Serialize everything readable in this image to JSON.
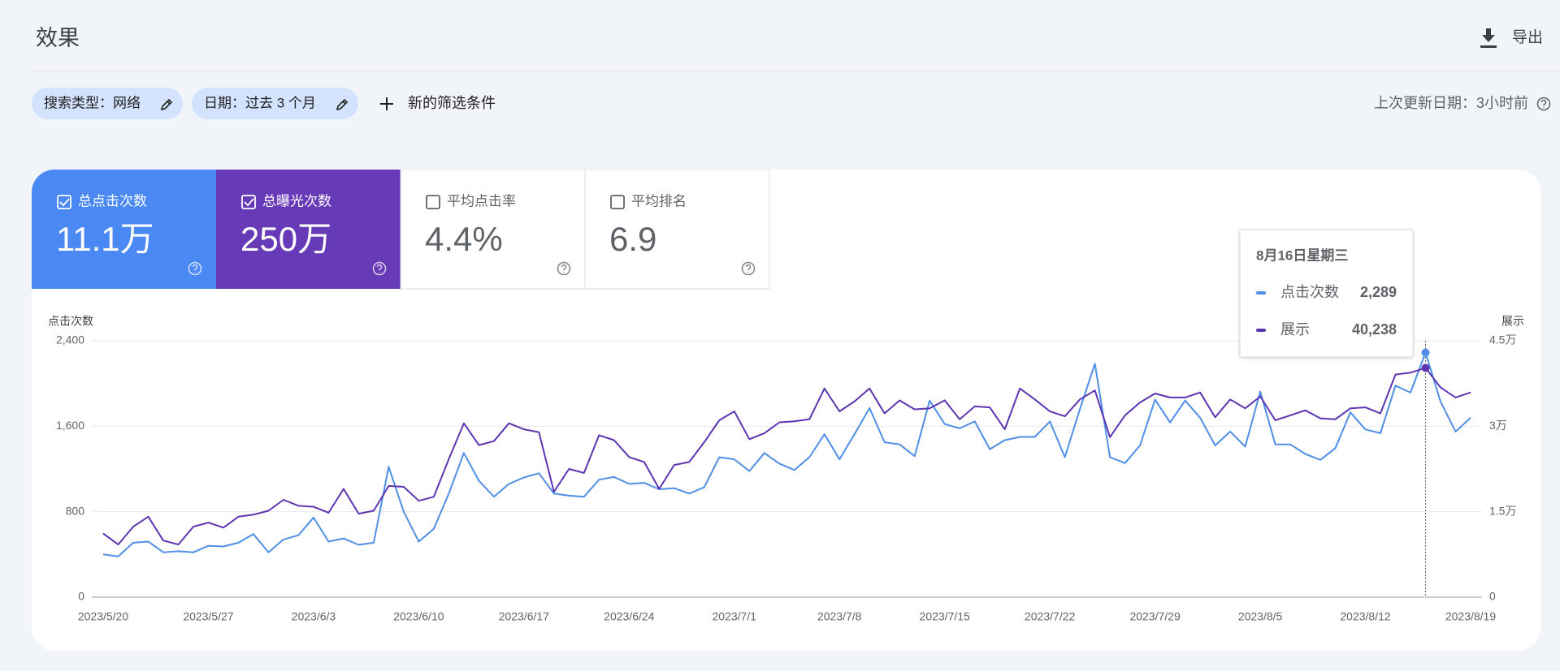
{
  "header": {
    "title": "效果",
    "export": "导出"
  },
  "filters": {
    "items": [
      "搜索类型：网络",
      "日期：过去 3 个月"
    ],
    "add": "新的筛选条件",
    "last_updated": "上次更新日期：3小时前"
  },
  "metrics": [
    {
      "label": "总点击次数",
      "value": "11.1万",
      "checked": true,
      "color": "#4a89f3"
    },
    {
      "label": "总曝光次数",
      "value": "250万",
      "checked": true,
      "color": "#673ab7"
    },
    {
      "label": "平均点击率",
      "value": "4.4%",
      "checked": false
    },
    {
      "label": "平均排名",
      "value": "6.9",
      "checked": false
    }
  ],
  "chart_data": {
    "type": "line",
    "y_label": "点击次数",
    "y2_label": "展示",
    "categories": [
      "2023/5/20",
      null,
      null,
      null,
      null,
      null,
      null,
      "2023/5/27",
      null,
      null,
      null,
      null,
      null,
      null,
      "2023/6/3",
      null,
      null,
      null,
      null,
      null,
      null,
      "2023/6/10",
      null,
      null,
      null,
      null,
      null,
      null,
      "2023/6/17",
      null,
      null,
      null,
      null,
      null,
      null,
      "2023/6/24",
      null,
      null,
      null,
      null,
      null,
      null,
      "2023/7/1",
      null,
      null,
      null,
      null,
      null,
      null,
      "2023/7/8",
      null,
      null,
      null,
      null,
      null,
      null,
      "2023/7/15",
      null,
      null,
      null,
      null,
      null,
      null,
      "2023/7/22",
      null,
      null,
      null,
      null,
      null,
      null,
      "2023/7/29",
      null,
      null,
      null,
      null,
      null,
      null,
      "2023/8/5",
      null,
      null,
      null,
      null,
      null,
      null,
      "2023/8/12",
      null,
      null,
      null,
      null,
      null,
      null,
      "2023/8/19"
    ],
    "ylim": [
      0,
      2400
    ],
    "yticks": [
      0,
      800,
      {
        "value": 1600,
        "label": "1,600"
      },
      {
        "value": 2400,
        "label": "2,400"
      }
    ],
    "y2lim": [
      0,
      45000
    ],
    "y2ticks": [
      0,
      {
        "value": 15000,
        "label": "1.5万"
      },
      {
        "value": 30000,
        "label": "3万"
      },
      {
        "value": 45000,
        "label": "4.5万"
      }
    ],
    "grid": true,
    "series": [
      {
        "name": "点击次数",
        "color": "#4f8fe6",
        "values": [
          400,
          381,
          510,
          520,
          420,
          430,
          420,
          480,
          475,
          510,
          590,
          420,
          540,
          580,
          745,
          520,
          550,
          490,
          510,
          1220,
          800,
          520,
          640,
          970,
          1350,
          1090,
          940,
          1060,
          1120,
          1160,
          970,
          950,
          940,
          1100,
          1125,
          1060,
          1070,
          1010,
          1020,
          970,
          1030,
          1310,
          1290,
          1180,
          1350,
          1250,
          1190,
          1310,
          1525,
          1290,
          1525,
          1770,
          1450,
          1430,
          1320,
          1840,
          1620,
          1580,
          1645,
          1385,
          1470,
          1500,
          1500,
          1645,
          1310,
          1760,
          2185,
          1310,
          1255,
          1420,
          1850,
          1635,
          1840,
          1680,
          1420,
          1550,
          1410,
          1925,
          1430,
          1430,
          1340,
          1285,
          1395,
          1730,
          1570,
          1535,
          1980,
          1915,
          2289,
          1830,
          1550,
          1680
        ]
      },
      {
        "name": "展示",
        "color": "#5e35b1",
        "axis": "y2",
        "values": [
          11160,
          9240,
          12380,
          14130,
          9940,
          9240,
          12380,
          13080,
          12210,
          14130,
          14480,
          15170,
          17090,
          16040,
          15870,
          14820,
          19010,
          14650,
          15170,
          19530,
          19360,
          16920,
          17610,
          24240,
          30520,
          26680,
          27380,
          30520,
          29470,
          28950,
          18490,
          22500,
          21800,
          28430,
          27550,
          24590,
          23720,
          19010,
          23200,
          23720,
          27210,
          31040,
          32610,
          27730,
          28780,
          30690,
          30870,
          31220,
          36620,
          32610,
          34360,
          36620,
          32260,
          34530,
          32960,
          33140,
          34530,
          31220,
          33480,
          33310,
          29470,
          36620,
          34710,
          32610,
          31740,
          34710,
          36280,
          28080,
          31920,
          34180,
          35750,
          35050,
          35050,
          35930,
          31570,
          34710,
          33140,
          35230,
          31040,
          31920,
          32790,
          31390,
          31220,
          33140,
          33310,
          32260,
          39070,
          39410,
          40238,
          36800,
          35050,
          35930
        ]
      }
    ],
    "tooltip": {
      "title": "8月16日星期三",
      "values": [
        2289,
        40238
      ],
      "value_labels": [
        "2,289",
        "40,238"
      ]
    }
  }
}
